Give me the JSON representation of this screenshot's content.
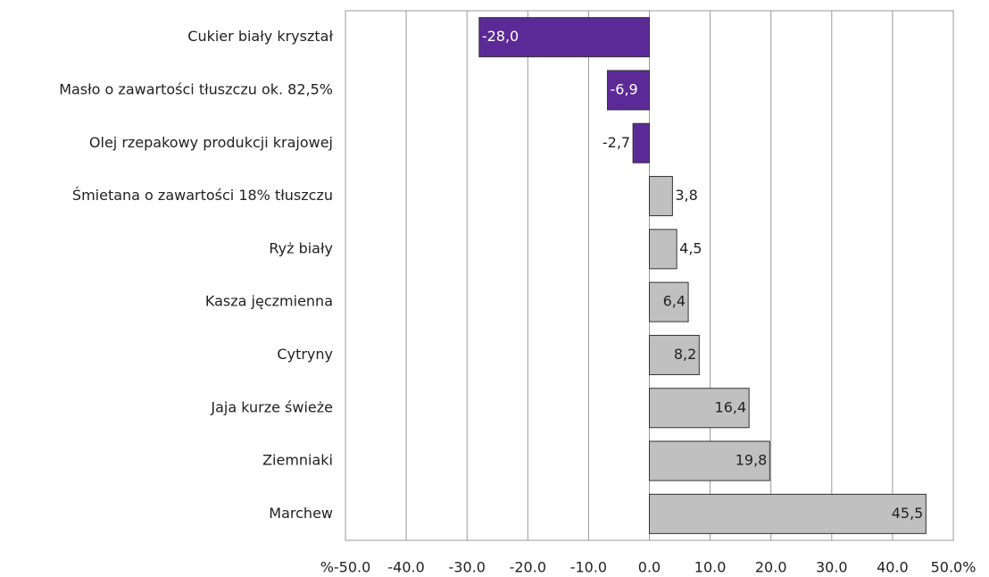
{
  "chart_data": {
    "type": "barh",
    "categories": [
      "Cukier biały kryształ",
      "Masło o zawartości tłuszczu ok. 82,5%",
      "Olej rzepakowy produkcji krajowej",
      "Śmietana o zawartości 18% tłuszczu",
      "Ryż biały",
      "Kasza jęczmienna",
      "Cytryny",
      "Jaja kurze świeże",
      "Ziemniaki",
      "Marchew"
    ],
    "values": [
      -28.0,
      -6.9,
      -2.7,
      3.8,
      4.5,
      6.4,
      8.2,
      16.4,
      19.8,
      45.5
    ],
    "value_labels": [
      "-28,0",
      "-6,9",
      "-2,7",
      "3,8",
      "4,5",
      "6,4",
      "8,2",
      "16,4",
      "19,8",
      "45,5"
    ],
    "colors": [
      "#5b2a96",
      "#5b2a96",
      "#5b2a96",
      "#c0c0c0",
      "#c0c0c0",
      "#c0c0c0",
      "#c0c0c0",
      "#c0c0c0",
      "#c0c0c0",
      "#c0c0c0"
    ],
    "xlim": [
      -50,
      50
    ],
    "xticks": [
      {
        "value": -50,
        "label": "%-50.0"
      },
      {
        "value": -40,
        "label": "-40.0"
      },
      {
        "value": -30,
        "label": "-30.0"
      },
      {
        "value": -20,
        "label": "-20.0"
      },
      {
        "value": -10,
        "label": "-10.0"
      },
      {
        "value": 0,
        "label": "0.0"
      },
      {
        "value": 10,
        "label": "10.0"
      },
      {
        "value": 20,
        "label": "20.0"
      },
      {
        "value": 30,
        "label": "30.0"
      },
      {
        "value": 40,
        "label": "40.0"
      },
      {
        "value": 50,
        "label": "50.0%"
      }
    ],
    "grid": true
  }
}
